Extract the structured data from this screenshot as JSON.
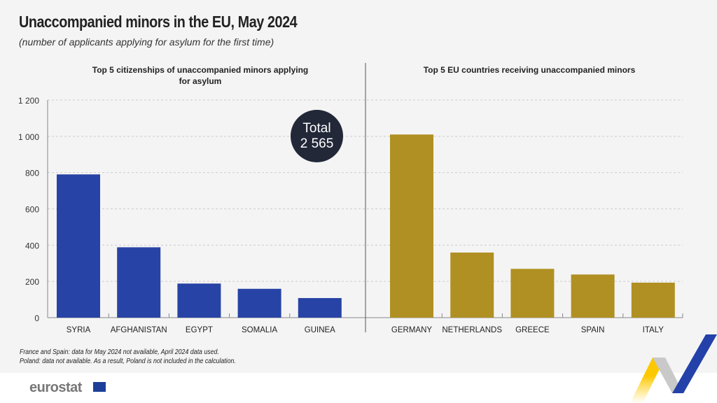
{
  "title": "Unaccompanied minors in the EU, May 2024",
  "subtitle": "(number of applicants applying for asylum for the first time)",
  "notes": [
    "France and Spain: data for May 2024 not available, April 2024 data used.",
    "Poland: data not available. As a result, Poland is not included in the calculation."
  ],
  "logo": "eurostat",
  "total": {
    "label": "Total",
    "value": "2 565"
  },
  "chart_data": [
    {
      "type": "bar",
      "title": "Top 5 citizenships of unaccompanied minors applying for asylum",
      "categories": [
        "SYRIA",
        "AFGHANISTAN",
        "EGYPT",
        "SOMALIA",
        "GUINEA"
      ],
      "values": [
        790,
        388,
        188,
        159,
        108
      ],
      "color": "#2743a5",
      "ylim": [
        0,
        1200
      ],
      "yticks": [
        0,
        200,
        400,
        600,
        800,
        1000,
        1200
      ],
      "ytick_labels": [
        "0",
        "200",
        "400",
        "600",
        "800",
        "1 000",
        "1 200"
      ],
      "grid": true
    },
    {
      "type": "bar",
      "title": "Top 5 EU countries receiving unaccompanied minors",
      "categories": [
        "GERMANY",
        "NETHERLANDS",
        "GREECE",
        "SPAIN",
        "ITALY"
      ],
      "values": [
        1010,
        359,
        269,
        238,
        193
      ],
      "color": "#b09023",
      "ylim": [
        0,
        1200
      ],
      "grid": true
    }
  ]
}
